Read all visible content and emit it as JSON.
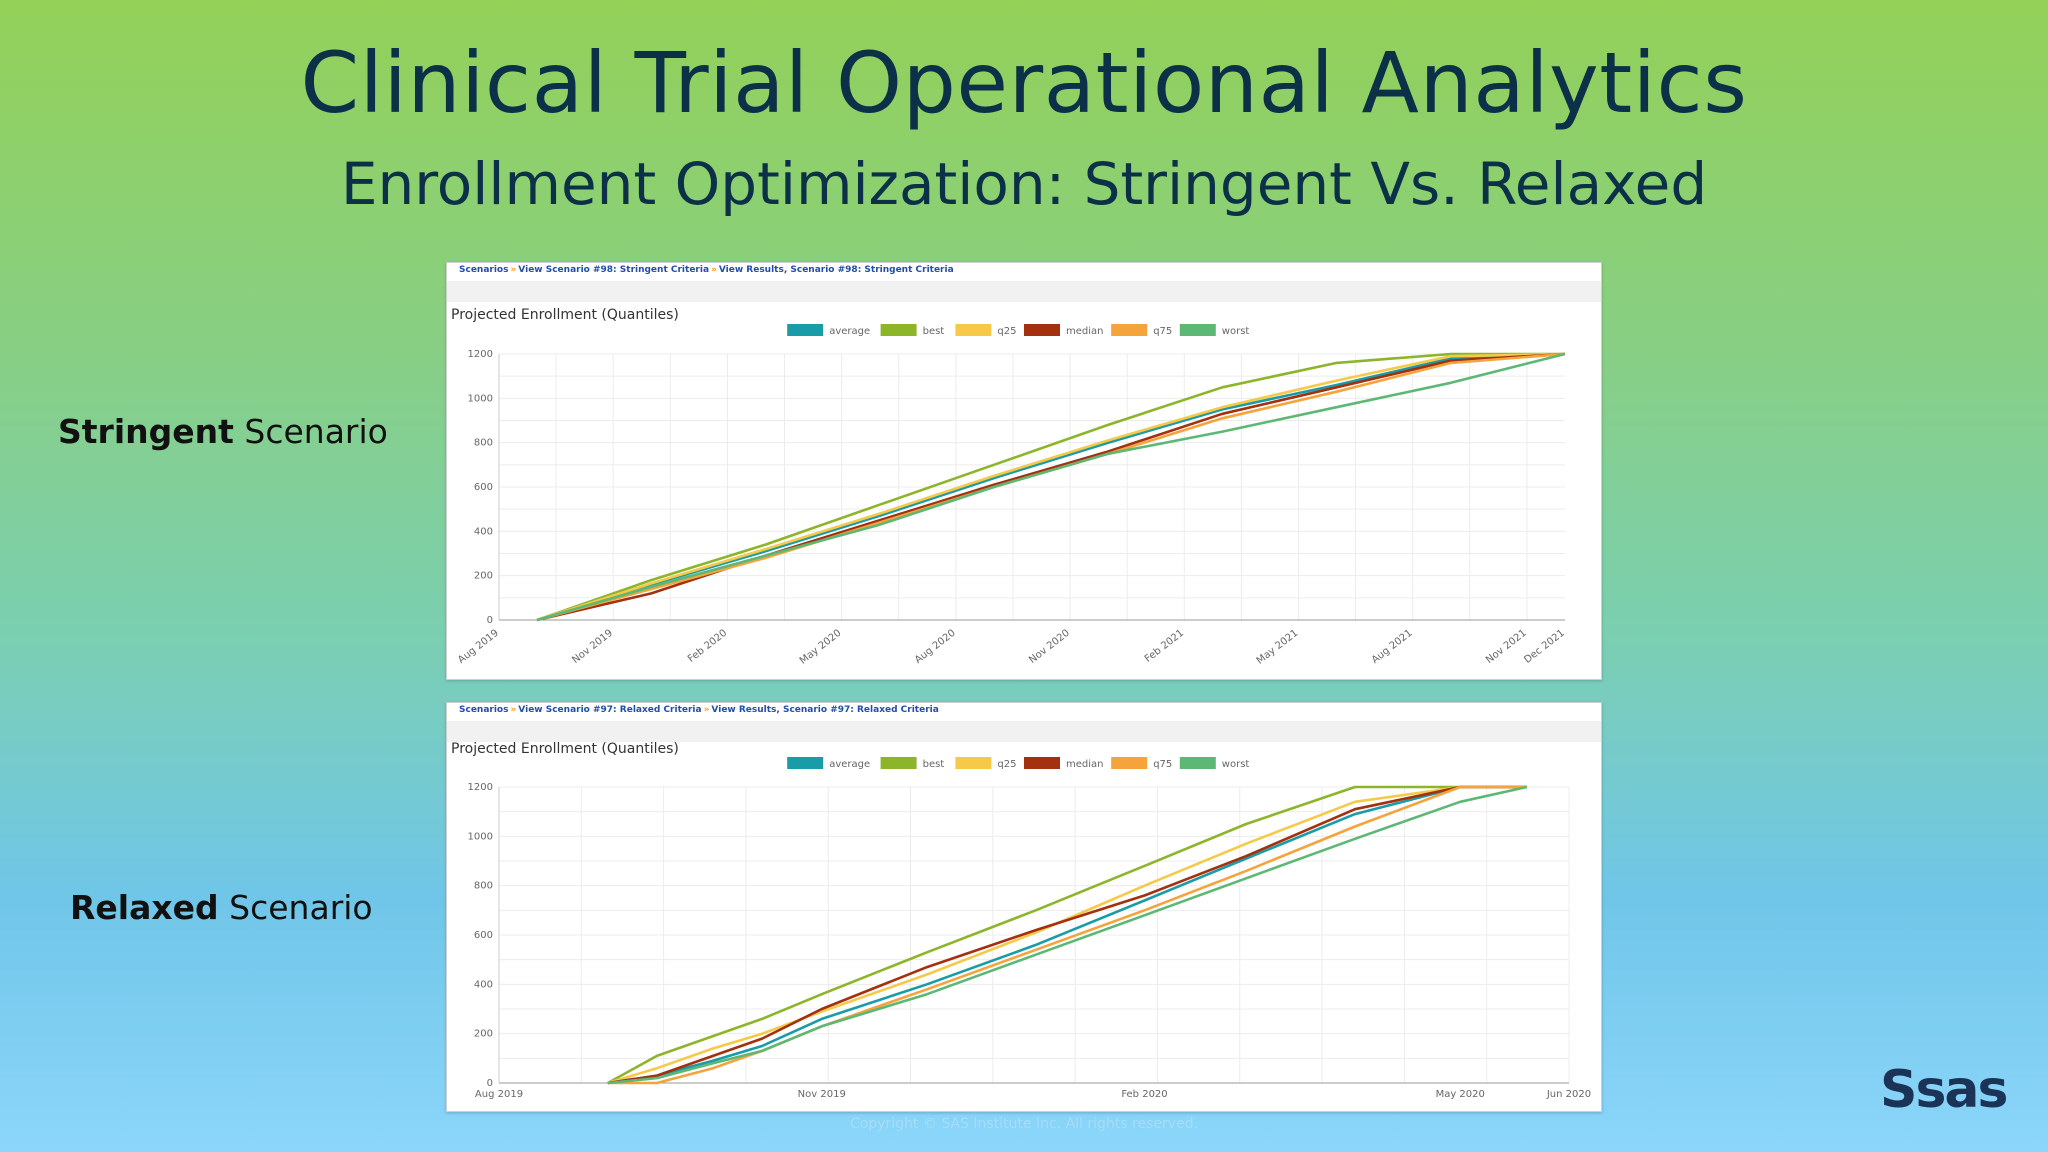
{
  "slide": {
    "title": "Clinical Trial Operational Analytics",
    "subtitle": "Enrollment Optimization: Stringent Vs. Relaxed",
    "stringent_label_bold": "Stringent",
    "stringent_label_rest": " Scenario",
    "relaxed_label_bold": "Relaxed",
    "relaxed_label_rest": " Scenario",
    "logo": "Ssas",
    "copyright": "Copyright © SAS Institute Inc. All rights reserved."
  },
  "panels": [
    {
      "breadcrumb": [
        "Scenarios",
        "View Scenario #98: Stringent Criteria",
        "View Results, Scenario #98: Stringent Criteria"
      ],
      "chart_title": "Projected Enrollment (Quantiles)"
    },
    {
      "breadcrumb": [
        "Scenarios",
        "View Scenario #97: Relaxed Criteria",
        "View Results, Scenario #97: Relaxed Criteria"
      ],
      "chart_title": "Projected Enrollment (Quantiles)"
    }
  ],
  "colors": {
    "average": "#1a9ba8",
    "best": "#8db52a",
    "q25": "#f7c948",
    "median": "#a3300f",
    "q75": "#f5a33c",
    "worst": "#5cb874"
  },
  "chart_data": [
    {
      "type": "line",
      "title": "Projected Enrollment (Quantiles)",
      "x_unit": "month",
      "xlim": [
        "2019-08",
        "2021-12"
      ],
      "x_ticks": [
        "Aug 2019",
        "Nov 2019",
        "Feb 2020",
        "May 2020",
        "Aug 2020",
        "Nov 2020",
        "Feb 2021",
        "May 2021",
        "Aug 2021",
        "Nov 2021",
        "Dec 2021"
      ],
      "ylim": [
        0,
        1200
      ],
      "y_ticks": [
        0,
        200,
        400,
        600,
        800,
        1000,
        1200
      ],
      "legend_position": "top-center",
      "grid": true,
      "x": [
        "2019-09",
        "2019-12",
        "2020-03",
        "2020-06",
        "2020-09",
        "2020-12",
        "2021-03",
        "2021-06",
        "2021-09",
        "2021-12"
      ],
      "series": [
        {
          "name": "average",
          "values": [
            0,
            160,
            310,
            470,
            640,
            800,
            950,
            1060,
            1180,
            1200
          ]
        },
        {
          "name": "best",
          "values": [
            0,
            180,
            340,
            520,
            700,
            880,
            1050,
            1160,
            1200,
            1200
          ]
        },
        {
          "name": "q25",
          "values": [
            0,
            165,
            320,
            480,
            650,
            810,
            960,
            1080,
            1190,
            1200
          ]
        },
        {
          "name": "median",
          "values": [
            0,
            120,
            290,
            450,
            610,
            760,
            930,
            1050,
            1170,
            1200
          ]
        },
        {
          "name": "q75",
          "values": [
            0,
            140,
            280,
            440,
            600,
            750,
            910,
            1030,
            1160,
            1200
          ]
        },
        {
          "name": "worst",
          "values": [
            0,
            150,
            290,
            430,
            600,
            750,
            850,
            960,
            1070,
            1200
          ]
        }
      ]
    },
    {
      "type": "line",
      "title": "Projected Enrollment (Quantiles)",
      "x_unit": "week",
      "xlim": [
        "2019-08-01",
        "2020-06-01"
      ],
      "x_ticks": [
        "Aug 2019",
        "Nov 2019",
        "Feb 2020",
        "May 2020",
        "Jun 2020"
      ],
      "ylim": [
        0,
        1200
      ],
      "y_ticks": [
        0,
        200,
        400,
        600,
        800,
        1000,
        1200
      ],
      "legend_position": "top-center",
      "grid": true,
      "x": [
        "2019-09-01",
        "2019-09-15",
        "2019-10-01",
        "2019-10-15",
        "2019-11-01",
        "2019-12-01",
        "2020-01-01",
        "2020-02-01",
        "2020-03-01",
        "2020-04-01",
        "2020-05-01",
        "2020-05-20"
      ],
      "series": [
        {
          "name": "average",
          "values": [
            0,
            30,
            90,
            150,
            260,
            400,
            560,
            740,
            910,
            1090,
            1200,
            1200
          ]
        },
        {
          "name": "best",
          "values": [
            0,
            110,
            190,
            260,
            360,
            530,
            700,
            880,
            1050,
            1200,
            1200,
            1200
          ]
        },
        {
          "name": "q25",
          "values": [
            0,
            60,
            140,
            200,
            290,
            440,
            610,
            800,
            970,
            1140,
            1200,
            1200
          ]
        },
        {
          "name": "median",
          "values": [
            0,
            30,
            110,
            180,
            300,
            470,
            620,
            760,
            920,
            1110,
            1200,
            1200
          ]
        },
        {
          "name": "q75",
          "values": [
            0,
            0,
            60,
            130,
            230,
            380,
            540,
            700,
            860,
            1040,
            1200,
            1200
          ]
        },
        {
          "name": "worst",
          "values": [
            0,
            20,
            80,
            130,
            230,
            360,
            520,
            680,
            830,
            990,
            1140,
            1200
          ]
        }
      ]
    }
  ]
}
